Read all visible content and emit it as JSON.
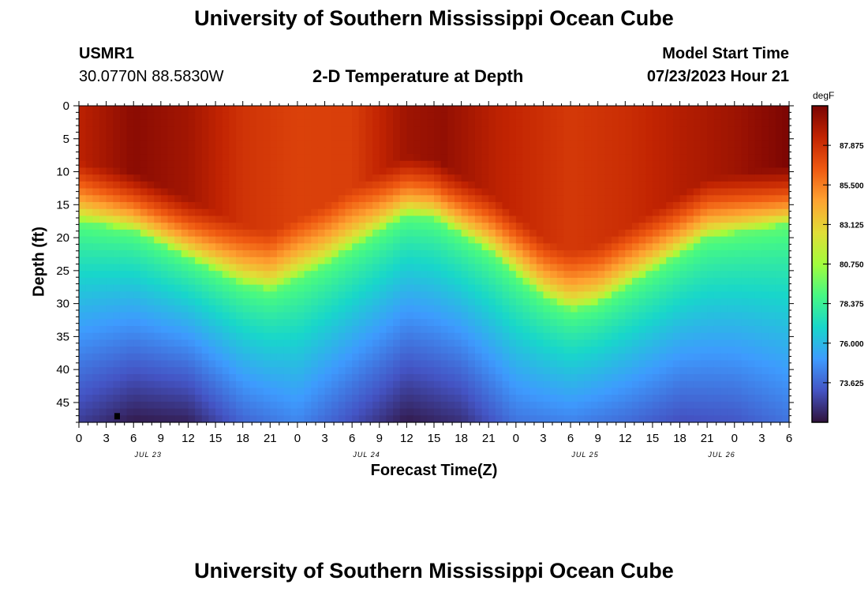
{
  "page": {
    "title_top": "University of Southern Mississippi Ocean Cube",
    "title_bottom": "University of Southern Mississippi Ocean Cube",
    "station_id": "USMR1",
    "station_coords": "30.0770N  88.5830W",
    "plot_title": "2-D Temperature at Depth",
    "model_start_label": "Model Start Time",
    "model_start_value": "07/23/2023 Hour 21"
  },
  "colors": {
    "colormap": [
      "#30123b",
      "#4454c4",
      "#3e9bfe",
      "#18d6cb",
      "#46f884",
      "#a2fc3c",
      "#e1dd37",
      "#fea331",
      "#ef5911",
      "#c22402",
      "#7a0403"
    ],
    "axis": "#000000"
  },
  "chart_data": {
    "type": "heatmap",
    "title": "2-D Temperature at Depth",
    "xlabel": "Forecast Time(Z)",
    "ylabel": "Depth (ft)",
    "x_tick_labels": [
      "0",
      "3",
      "6",
      "9",
      "12",
      "15",
      "18",
      "21",
      "0",
      "3",
      "6",
      "9",
      "12",
      "15",
      "18",
      "21",
      "0",
      "3",
      "6",
      "9",
      "12",
      "15",
      "18",
      "21",
      "0",
      "3",
      "6"
    ],
    "date_labels": [
      {
        "label": "JUL 23",
        "hour_offset": 4
      },
      {
        "label": "JUL 24",
        "hour_offset": 28
      },
      {
        "label": "JUL 25",
        "hour_offset": 52
      },
      {
        "label": "JUL 26",
        "hour_offset": 67
      }
    ],
    "x_range_hours": [
      0,
      78
    ],
    "y_ticks": [
      0,
      5,
      10,
      15,
      20,
      25,
      30,
      35,
      40,
      45
    ],
    "y_range_ft": [
      0,
      48
    ],
    "colorbar": {
      "unit": "degF",
      "min": 71.25,
      "max": 90.25,
      "tick_values": [
        87.875,
        85.5,
        83.125,
        80.75,
        78.375,
        76.0,
        73.625
      ],
      "tick_labels": [
        "87.875",
        "85.500",
        "83.125",
        "80.750",
        "78.375",
        "76.000",
        "73.625"
      ]
    },
    "thermocline_depth_ft_by_hour": [
      [
        0,
        17.5
      ],
      [
        6,
        19
      ],
      [
        12,
        23
      ],
      [
        18,
        27
      ],
      [
        21,
        28
      ],
      [
        27,
        24
      ],
      [
        33,
        19
      ],
      [
        36,
        16.5
      ],
      [
        39,
        17
      ],
      [
        45,
        22
      ],
      [
        51,
        29
      ],
      [
        54,
        31
      ],
      [
        57,
        30
      ],
      [
        63,
        25
      ],
      [
        69,
        20
      ],
      [
        78,
        18
      ]
    ],
    "surface_temp_degF_by_hour": [
      [
        0,
        88.5
      ],
      [
        6,
        89.8
      ],
      [
        12,
        89.2
      ],
      [
        18,
        87.8
      ],
      [
        24,
        87.3
      ],
      [
        30,
        87.4
      ],
      [
        36,
        89.3
      ],
      [
        40,
        89.6
      ],
      [
        46,
        88.5
      ],
      [
        54,
        87.6
      ],
      [
        60,
        88.0
      ],
      [
        66,
        88.7
      ],
      [
        72,
        89.3
      ],
      [
        78,
        90.2
      ]
    ],
    "bottom_temp_degF_by_hour": [
      [
        0,
        72.5
      ],
      [
        6,
        71.5
      ],
      [
        12,
        71.7
      ],
      [
        18,
        73.6
      ],
      [
        24,
        74.5
      ],
      [
        30,
        73.0
      ],
      [
        36,
        71.5
      ],
      [
        42,
        72.1
      ],
      [
        48,
        74.0
      ],
      [
        54,
        74.4
      ],
      [
        60,
        73.8
      ],
      [
        66,
        73.0
      ],
      [
        72,
        73.2
      ],
      [
        78,
        74.0
      ]
    ]
  }
}
